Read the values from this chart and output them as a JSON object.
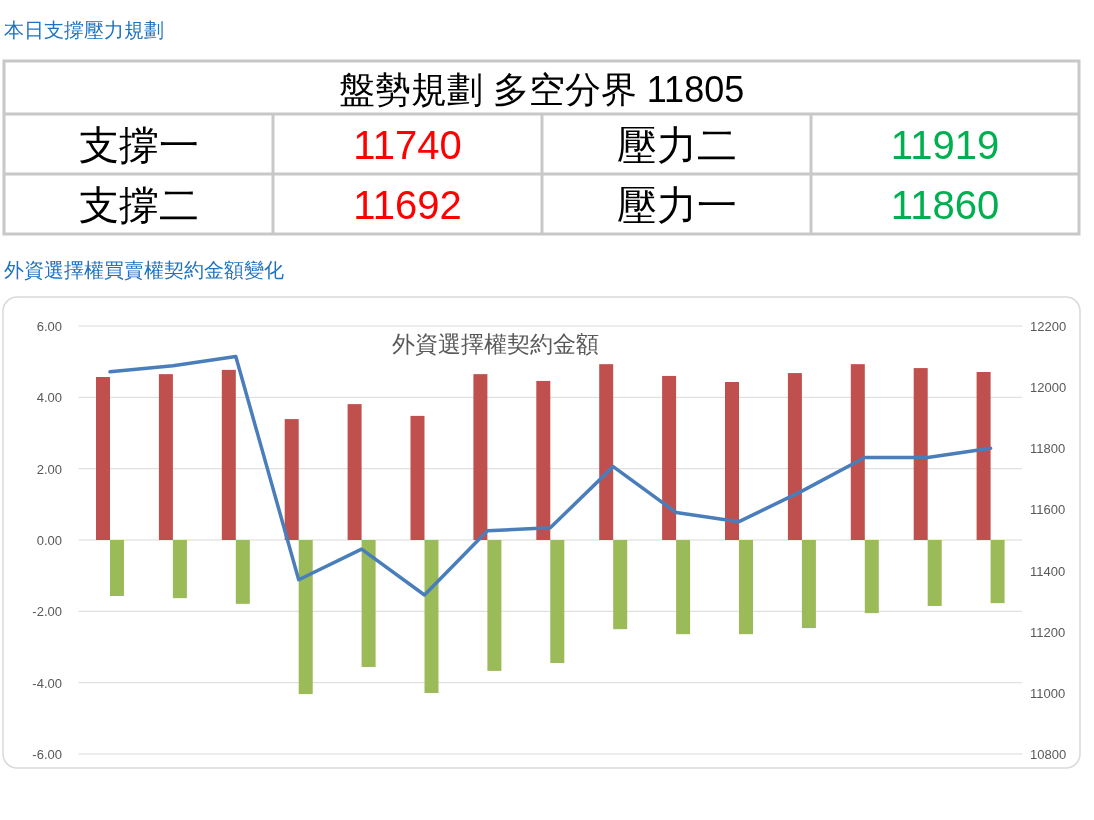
{
  "chart_data": [
    {
      "type": "other",
      "title": "本日支撐壓力規劃",
      "annotations": [
        "盤勢規劃 多空分界 11805",
        "支撐一",
        "11740",
        "壓力二",
        "11919",
        "支撐二",
        "11692",
        "壓力一",
        "11860"
      ]
    },
    {
      "type": "bar",
      "subtitle": "外資選擇權買賣權契約金額變化",
      "title": "外資選擇權契約金額",
      "categories": [
        null,
        null,
        null,
        null,
        null,
        null,
        null,
        null,
        null,
        null,
        null,
        null,
        null,
        null,
        null
      ],
      "series": [
        {
          "type": "bar",
          "color": "#c0504d",
          "values": [
            4.57,
            4.65,
            4.77,
            3.39,
            3.81,
            3.48,
            4.65,
            4.46,
            4.93,
            4.6,
            4.43,
            4.68,
            4.93,
            4.82,
            4.71
          ]
        },
        {
          "type": "bar",
          "color": "#9bbb59",
          "values": [
            -1.57,
            -1.63,
            -1.79,
            -4.32,
            -3.56,
            -4.29,
            -3.67,
            -3.45,
            -2.5,
            -2.64,
            -2.64,
            -2.47,
            -2.05,
            -1.85,
            -1.77
          ]
        },
        {
          "type": "line",
          "axis": "y2",
          "color": "#4a7ebb",
          "values": [
            12050,
            12070,
            12100,
            11370,
            11470,
            11320,
            11530,
            11540,
            11740,
            11590,
            11560,
            11660,
            11770,
            11770,
            11800
          ]
        }
      ],
      "ylim": [
        -6,
        6
      ],
      "yticks": [
        {
          "value": -6,
          "label": "-6.00"
        },
        {
          "value": -4,
          "label": "-4.00"
        },
        {
          "value": -2,
          "label": "-2.00"
        },
        {
          "value": 0,
          "label": "0.00"
        },
        {
          "value": 2,
          "label": "2.00"
        },
        {
          "value": 4,
          "label": "4.00"
        },
        {
          "value": 6,
          "label": "6.00"
        }
      ],
      "y2lim": [
        10800,
        12200
      ],
      "y2ticks": [
        10800,
        11000,
        11200,
        11400,
        11600,
        11800,
        12000,
        12200
      ],
      "grid": "y",
      "marker": "none",
      "line_style": "solid"
    }
  ]
}
